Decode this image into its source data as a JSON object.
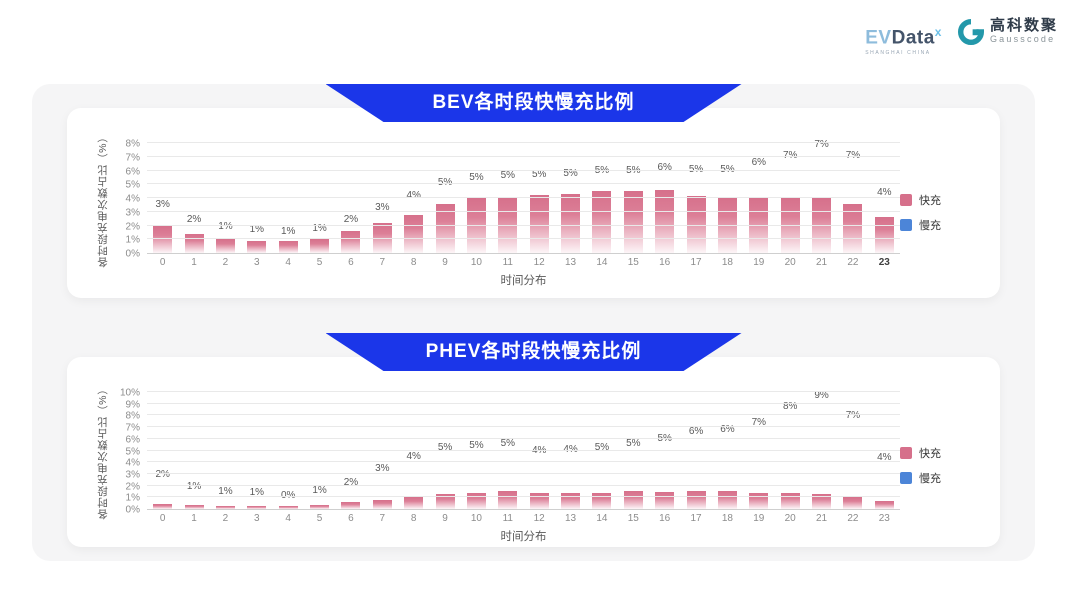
{
  "header": {
    "evdata": {
      "ev": "EV",
      "data": "Data",
      "sup": "x",
      "tagline": "SHANGHAI CHINA"
    },
    "gausscode": {
      "cn": "高科数聚",
      "en": "Gausscode",
      "icon_color": "#2398aa"
    }
  },
  "colors": {
    "banner_blue": "#1b36e9",
    "fast_pink": "#d6708b",
    "slow_blue": "#4c85d8",
    "panel_bg": "#f5f5f6",
    "gridline": "#e9e9e9"
  },
  "chart_data": [
    {
      "type": "bar",
      "stacked": true,
      "title": "BEV各时段快慢充比例",
      "xlabel": "时间分布",
      "ylabel": "各时段充电次数占比（%）",
      "ylim": [
        0,
        8
      ],
      "yticks": [
        "0%",
        "1%",
        "2%",
        "3%",
        "4%",
        "5%",
        "6%",
        "7%",
        "8%"
      ],
      "grid": true,
      "legend_position": "right",
      "categories": [
        "0",
        "1",
        "2",
        "3",
        "4",
        "5",
        "6",
        "7",
        "8",
        "9",
        "10",
        "11",
        "12",
        "13",
        "14",
        "15",
        "16",
        "17",
        "18",
        "19",
        "20",
        "21",
        "22",
        "23"
      ],
      "bar_labels": [
        "3%",
        "2%",
        "1%",
        "1%",
        "1%",
        "1%",
        "2%",
        "3%",
        "4%",
        "5%",
        "5%",
        "5%",
        "5%",
        "5%",
        "5%",
        "5%",
        "6%",
        "5%",
        "5%",
        "6%",
        "7%",
        "7%",
        "7%",
        "4%"
      ],
      "series": [
        {
          "name": "快充",
          "color": "#d6708b",
          "values": [
            2.0,
            1.4,
            1.0,
            0.85,
            0.9,
            1.0,
            1.6,
            2.2,
            2.8,
            3.6,
            4.0,
            4.05,
            4.25,
            4.3,
            4.5,
            4.5,
            4.6,
            4.15,
            4.05,
            4.05,
            4.1,
            4.0,
            3.6,
            2.65
          ]
        },
        {
          "name": "慢充",
          "color": "#4c85d8",
          "values": [
            0.9,
            0.45,
            0.3,
            0.25,
            0.05,
            0.15,
            0.25,
            0.5,
            0.8,
            0.9,
            0.9,
            0.95,
            0.85,
            0.9,
            0.9,
            0.9,
            1.0,
            1.3,
            1.4,
            1.95,
            2.4,
            3.25,
            2.9,
            1.15
          ]
        }
      ],
      "bold_last_category": true
    },
    {
      "type": "bar",
      "stacked": true,
      "title": "PHEV各时段快慢充比例",
      "xlabel": "时间分布",
      "ylabel": "各时段充电次数占比（%）",
      "ylim": [
        0,
        10
      ],
      "yticks": [
        "0%",
        "1%",
        "2%",
        "3%",
        "4%",
        "5%",
        "6%",
        "7%",
        "8%",
        "9%",
        "10%"
      ],
      "grid": true,
      "legend_position": "right",
      "categories": [
        "0",
        "1",
        "2",
        "3",
        "4",
        "5",
        "6",
        "7",
        "8",
        "9",
        "10",
        "11",
        "12",
        "13",
        "14",
        "15",
        "16",
        "17",
        "18",
        "19",
        "20",
        "21",
        "22",
        "23"
      ],
      "bar_labels": [
        "2%",
        "1%",
        "1%",
        "1%",
        "0%",
        "1%",
        "2%",
        "3%",
        "4%",
        "5%",
        "5%",
        "5%",
        "4%",
        "4%",
        "5%",
        "5%",
        "5%",
        "6%",
        "6%",
        "7%",
        "8%",
        "9%",
        "7%",
        "4%"
      ],
      "series": [
        {
          "name": "快充",
          "color": "#d6708b",
          "values": [
            0.45,
            0.35,
            0.3,
            0.3,
            0.25,
            0.35,
            0.6,
            0.8,
            1.0,
            1.3,
            1.4,
            1.5,
            1.4,
            1.35,
            1.35,
            1.55,
            1.45,
            1.5,
            1.5,
            1.4,
            1.35,
            1.25,
            1.05,
            0.65
          ]
        },
        {
          "name": "慢充",
          "color": "#4c85d8",
          "values": [
            1.75,
            0.85,
            0.5,
            0.35,
            0.2,
            0.5,
            0.95,
            1.95,
            2.8,
            3.2,
            3.3,
            3.4,
            2.9,
            3.05,
            3.15,
            3.3,
            3.85,
            4.4,
            4.6,
            5.3,
            6.65,
            7.7,
            6.25,
            3.0
          ]
        }
      ],
      "bold_last_category": false
    }
  ]
}
